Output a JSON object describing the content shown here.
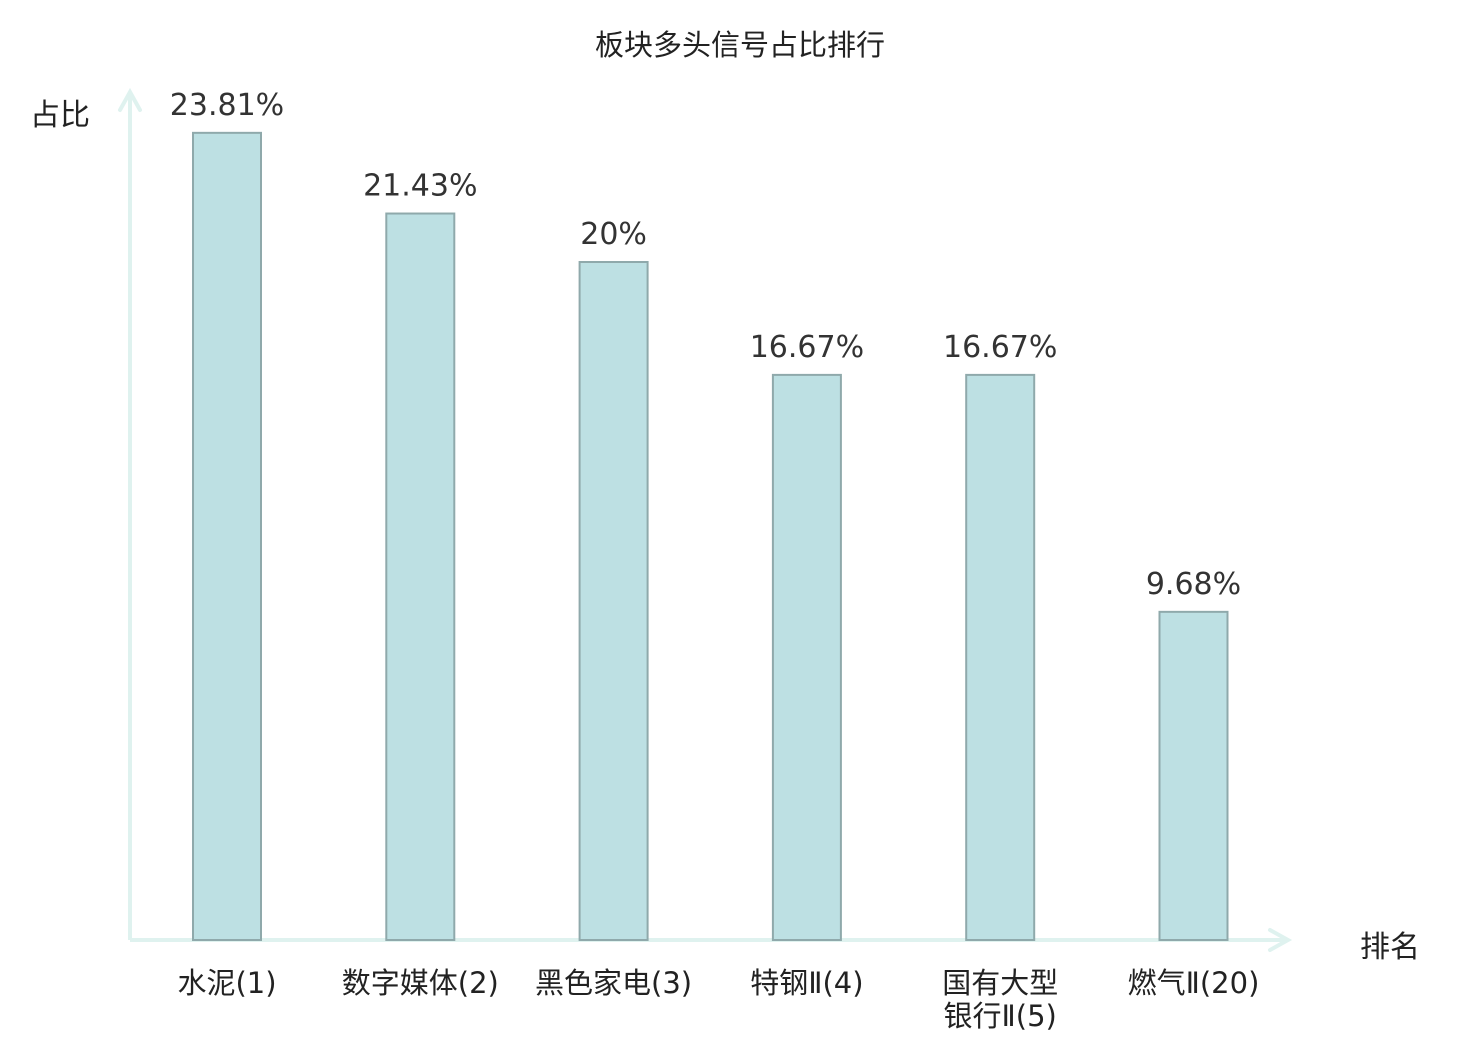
{
  "chart_data": {
    "type": "bar",
    "title": "板块多头信号占比排行",
    "xlabel": "排名",
    "ylabel": "占比",
    "categories": [
      [
        "水泥(1)"
      ],
      [
        "数字媒体(2)"
      ],
      [
        "黑色家电(3)"
      ],
      [
        "特钢Ⅱ(4)"
      ],
      [
        "国有大型",
        "银行Ⅱ(5)"
      ],
      [
        "燃气Ⅱ(20)"
      ]
    ],
    "values": [
      23.81,
      21.43,
      20,
      16.67,
      16.67,
      9.68
    ],
    "value_labels": [
      "23.81%",
      "21.43%",
      "20%",
      "16.67%",
      "16.67%",
      "9.68%"
    ],
    "highlight_index": 5,
    "ylim": [
      0,
      25
    ],
    "grid": false,
    "colors": {
      "bar_fill": "#bde0e3",
      "bar_stroke": "#8fa9ab",
      "axis": "#dff2ef",
      "highlight_text": "#d42020",
      "label_text": "#333333"
    }
  }
}
